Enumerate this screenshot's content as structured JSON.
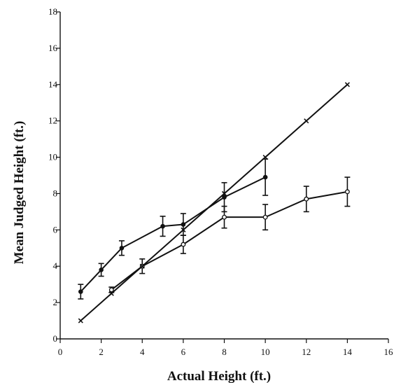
{
  "chart_data": {
    "type": "line",
    "xlabel": "Actual Height (ft.)",
    "ylabel": "Mean Judged Height (ft.)",
    "xlim": [
      0,
      16
    ],
    "ylim": [
      0,
      18
    ],
    "xticks": [
      0,
      2,
      4,
      6,
      8,
      10,
      12,
      14,
      16
    ],
    "yticks": [
      0,
      2,
      4,
      6,
      8,
      10,
      12,
      14,
      16,
      18
    ],
    "grid": false,
    "legend": "none",
    "series": [
      {
        "marker": "filled-circle",
        "color": "#111111",
        "points": [
          {
            "x": 1,
            "y": 2.6,
            "err": 0.4
          },
          {
            "x": 2,
            "y": 3.8,
            "err": 0.35
          },
          {
            "x": 3,
            "y": 5.0,
            "err": 0.4
          },
          {
            "x": 5,
            "y": 6.2,
            "err": 0.55
          },
          {
            "x": 6,
            "y": 6.3,
            "err": 0.6
          },
          {
            "x": 8,
            "y": 7.8,
            "err": 0.8
          },
          {
            "x": 10,
            "y": 8.9,
            "err": 1.0
          }
        ]
      },
      {
        "marker": "open-circle",
        "color": "#111111",
        "points": [
          {
            "x": 2.5,
            "y": 2.7,
            "err": 0.15
          },
          {
            "x": 4,
            "y": 4.0,
            "err": 0.4
          },
          {
            "x": 6,
            "y": 5.2,
            "err": 0.5
          },
          {
            "x": 8,
            "y": 6.7,
            "err": 0.6
          },
          {
            "x": 10,
            "y": 6.7,
            "err": 0.7
          },
          {
            "x": 12,
            "y": 7.7,
            "err": 0.7
          },
          {
            "x": 14,
            "y": 8.1,
            "err": 0.8
          }
        ]
      },
      {
        "marker": "x",
        "color": "#111111",
        "points": [
          {
            "x": 1,
            "y": 1
          },
          {
            "x": 2.5,
            "y": 2.5
          },
          {
            "x": 4,
            "y": 4
          },
          {
            "x": 6,
            "y": 6
          },
          {
            "x": 8,
            "y": 8
          },
          {
            "x": 10,
            "y": 10
          },
          {
            "x": 12,
            "y": 12
          },
          {
            "x": 14,
            "y": 14
          }
        ]
      }
    ]
  }
}
